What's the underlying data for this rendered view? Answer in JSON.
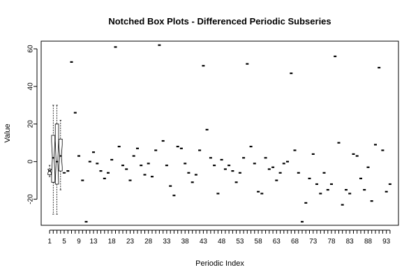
{
  "chart_data": {
    "type": "box",
    "title": "Notched Box Plots - Differenced Periodic Subseries",
    "xlabel": "Periodic Index",
    "ylabel": "Value",
    "xlim": [
      -1.3,
      96.3
    ],
    "ylim": [
      -33.9,
      64.1
    ],
    "x_ticks": [
      1,
      5,
      9,
      13,
      18,
      23,
      28,
      33,
      38,
      43,
      48,
      53,
      58,
      63,
      68,
      73,
      78,
      83,
      88,
      93
    ],
    "y_ticks": [
      -20,
      0,
      20,
      40,
      60
    ],
    "boxes": [
      {
        "index": 1,
        "min": -8,
        "q1": -7,
        "median": -5,
        "q3": -4,
        "max": -2
      },
      {
        "index": 2,
        "min": -28,
        "q1": -11,
        "median": 2,
        "q3": 14,
        "max": 30
      },
      {
        "index": 3,
        "min": -28,
        "q1": -12,
        "median": 0,
        "q3": 20,
        "max": 30
      },
      {
        "index": 4,
        "min": -15,
        "q1": -5,
        "median": 3,
        "q3": 12,
        "max": 22
      },
      {
        "index": 5,
        "min": -6,
        "q1": -6,
        "median": -6,
        "q3": -6,
        "max": -6
      }
    ],
    "point_values": [
      {
        "index": 6,
        "value": -5
      },
      {
        "index": 7,
        "value": 53
      },
      {
        "index": 8,
        "value": 26
      },
      {
        "index": 9,
        "value": 3
      },
      {
        "index": 10,
        "value": -10
      },
      {
        "index": 11,
        "value": -32
      },
      {
        "index": 12,
        "value": 0
      },
      {
        "index": 13,
        "value": 5
      },
      {
        "index": 14,
        "value": -1
      },
      {
        "index": 15,
        "value": -5
      },
      {
        "index": 16,
        "value": -9
      },
      {
        "index": 17,
        "value": -6
      },
      {
        "index": 18,
        "value": 1
      },
      {
        "index": 19,
        "value": 61
      },
      {
        "index": 20,
        "value": 8
      },
      {
        "index": 21,
        "value": -2
      },
      {
        "index": 22,
        "value": -4
      },
      {
        "index": 23,
        "value": -10
      },
      {
        "index": 24,
        "value": 3
      },
      {
        "index": 25,
        "value": 7
      },
      {
        "index": 26,
        "value": -2
      },
      {
        "index": 27,
        "value": -7
      },
      {
        "index": 28,
        "value": -1
      },
      {
        "index": 29,
        "value": -8
      },
      {
        "index": 30,
        "value": 6
      },
      {
        "index": 31,
        "value": 62
      },
      {
        "index": 32,
        "value": 11
      },
      {
        "index": 33,
        "value": -2
      },
      {
        "index": 34,
        "value": -13
      },
      {
        "index": 35,
        "value": -18
      },
      {
        "index": 36,
        "value": 8
      },
      {
        "index": 37,
        "value": 7
      },
      {
        "index": 38,
        "value": -1
      },
      {
        "index": 39,
        "value": -6
      },
      {
        "index": 40,
        "value": -11
      },
      {
        "index": 41,
        "value": -7
      },
      {
        "index": 42,
        "value": 6
      },
      {
        "index": 43,
        "value": 51
      },
      {
        "index": 44,
        "value": 17
      },
      {
        "index": 45,
        "value": 2
      },
      {
        "index": 46,
        "value": -2
      },
      {
        "index": 47,
        "value": -17
      },
      {
        "index": 48,
        "value": 1
      },
      {
        "index": 49,
        "value": -4
      },
      {
        "index": 50,
        "value": -2
      },
      {
        "index": 51,
        "value": -5
      },
      {
        "index": 52,
        "value": -11
      },
      {
        "index": 53,
        "value": -6
      },
      {
        "index": 54,
        "value": 2
      },
      {
        "index": 55,
        "value": 52
      },
      {
        "index": 56,
        "value": 8
      },
      {
        "index": 57,
        "value": -1
      },
      {
        "index": 58,
        "value": -16
      },
      {
        "index": 59,
        "value": -17
      },
      {
        "index": 60,
        "value": 2
      },
      {
        "index": 61,
        "value": -4
      },
      {
        "index": 62,
        "value": -3
      },
      {
        "index": 63,
        "value": -10
      },
      {
        "index": 64,
        "value": -6
      },
      {
        "index": 65,
        "value": -1
      },
      {
        "index": 66,
        "value": 0
      },
      {
        "index": 67,
        "value": 47
      },
      {
        "index": 68,
        "value": 6
      },
      {
        "index": 69,
        "value": -6
      },
      {
        "index": 70,
        "value": -32
      },
      {
        "index": 71,
        "value": -22
      },
      {
        "index": 72,
        "value": -9
      },
      {
        "index": 73,
        "value": 4
      },
      {
        "index": 74,
        "value": -12
      },
      {
        "index": 75,
        "value": -17
      },
      {
        "index": 76,
        "value": -6
      },
      {
        "index": 77,
        "value": -15
      },
      {
        "index": 78,
        "value": -12
      },
      {
        "index": 79,
        "value": 56
      },
      {
        "index": 80,
        "value": 10
      },
      {
        "index": 81,
        "value": -23
      },
      {
        "index": 82,
        "value": -15
      },
      {
        "index": 83,
        "value": -17
      },
      {
        "index": 84,
        "value": 4
      },
      {
        "index": 85,
        "value": 3
      },
      {
        "index": 86,
        "value": -9
      },
      {
        "index": 87,
        "value": -15
      },
      {
        "index": 88,
        "value": -3
      },
      {
        "index": 89,
        "value": -21
      },
      {
        "index": 90,
        "value": 9
      },
      {
        "index": 91,
        "value": 50
      },
      {
        "index": 92,
        "value": 6
      },
      {
        "index": 93,
        "value": -16
      },
      {
        "index": 94,
        "value": -12
      }
    ]
  }
}
